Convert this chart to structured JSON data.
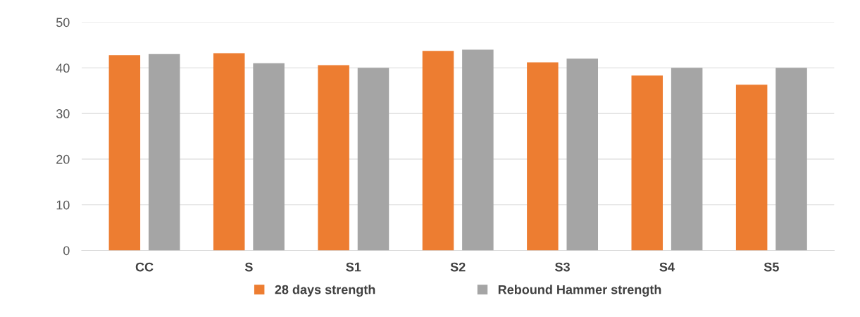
{
  "chart_data": {
    "type": "bar",
    "categories": [
      "CC",
      "S",
      "S1",
      "S2",
      "S3",
      "S4",
      "S5"
    ],
    "series": [
      {
        "name": "28 days strength",
        "color": "#ed7d31",
        "values": [
          42.8,
          43.2,
          40.6,
          43.7,
          41.2,
          38.3,
          36.3
        ]
      },
      {
        "name": "Rebound Hammer strength",
        "color": "#a5a5a5",
        "values": [
          43.0,
          41.0,
          40.0,
          44.0,
          42.0,
          40.0,
          40.0
        ]
      }
    ],
    "ylim": [
      0,
      50
    ],
    "yticks": [
      0,
      10,
      20,
      30,
      40,
      50
    ],
    "grid": "y",
    "legend": "bottom"
  }
}
